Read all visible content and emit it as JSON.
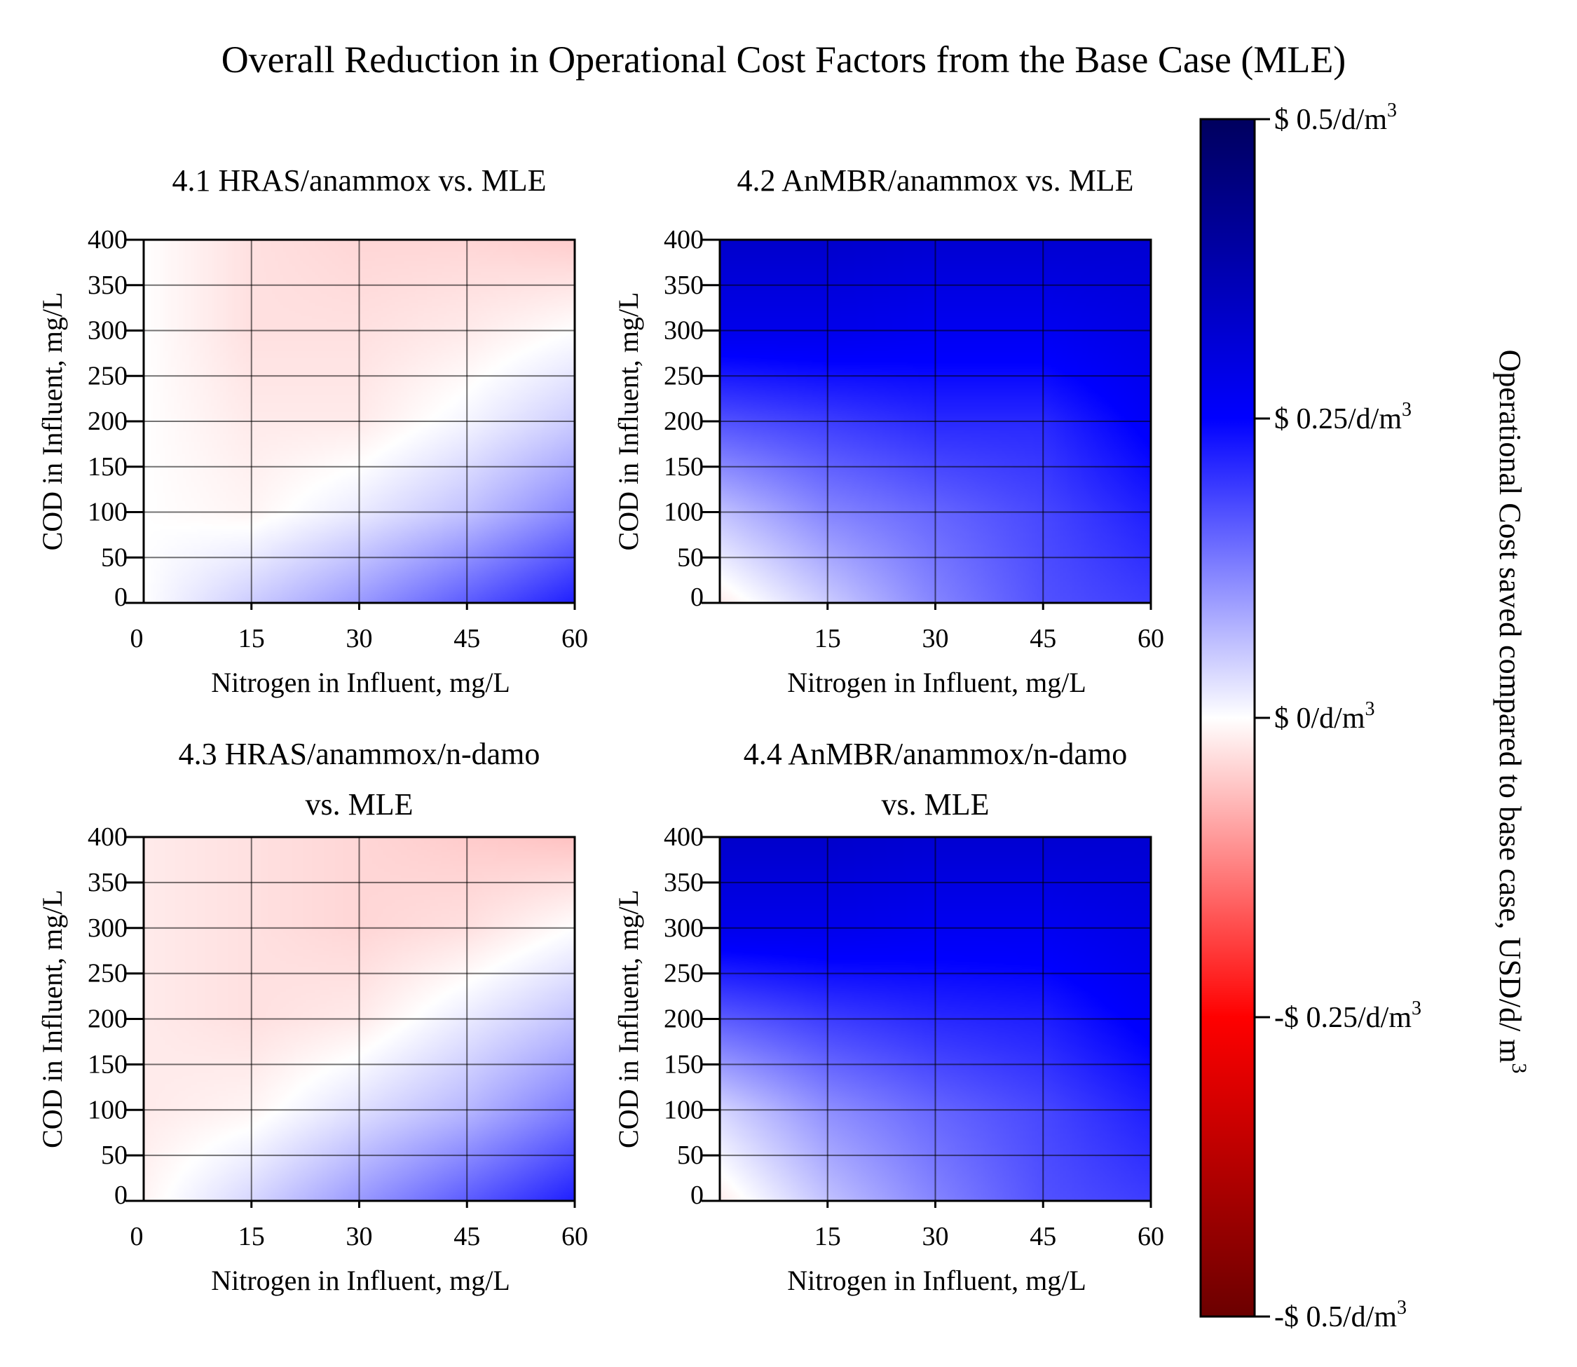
{
  "figure": {
    "title": "Overall Reduction in Operational Cost Factors from the Base Case (MLE)"
  },
  "colorbar": {
    "label": "Operational Cost saved compared to base case, USD/d/ m",
    "label_superscript": "3",
    "ticks": [
      {
        "value": 0.5,
        "text": "$ 0.5/d/m",
        "sup": "3"
      },
      {
        "value": 0.25,
        "text": "$ 0.25/d/m",
        "sup": "3"
      },
      {
        "value": 0,
        "text": "$ 0/d/m",
        "sup": "3"
      },
      {
        "value": -0.25,
        "text": "-$ 0.25/d/m",
        "sup": "3"
      },
      {
        "value": -0.5,
        "text": "-$ 0.5/d/m",
        "sup": "3"
      }
    ],
    "range": [
      -0.5,
      0.5
    ],
    "colors": {
      "min": "#6b0000",
      "low": "#ff0000",
      "zero": "#ffffff",
      "high": "#0000ff",
      "max": "#00005e"
    }
  },
  "chart_data": [
    {
      "type": "heatmap",
      "title": "4.1 HRAS/anammox vs. MLE",
      "xlabel": "Nitrogen in Influent, mg/L",
      "ylabel": "COD in Influent, mg/L",
      "xlim": [
        0,
        60
      ],
      "ylim": [
        0,
        400
      ],
      "xticks": [
        "0",
        "15",
        "30",
        "45",
        "60"
      ],
      "yticks": [
        "0",
        "50",
        "100",
        "150",
        "200",
        "250",
        "300",
        "350",
        "400"
      ],
      "x": [
        0,
        15,
        30,
        45,
        60
      ],
      "y": [
        0,
        100,
        200,
        300,
        400
      ],
      "z": [
        [
          0.0,
          0.05,
          0.1,
          0.16,
          0.22
        ],
        [
          0.0,
          -0.01,
          0.02,
          0.06,
          0.12
        ],
        [
          0.0,
          -0.02,
          -0.02,
          0.01,
          0.05
        ],
        [
          0.0,
          -0.03,
          -0.03,
          -0.02,
          0.0
        ],
        [
          0.0,
          -0.03,
          -0.04,
          -0.04,
          -0.05
        ]
      ],
      "grid": true
    },
    {
      "type": "heatmap",
      "title": "4.2 AnMBR/anammox vs. MLE",
      "xlabel": "Nitrogen in Influent, mg/L",
      "ylabel": "COD in Influent, mg/L",
      "xlim": [
        0,
        60
      ],
      "ylim": [
        0,
        400
      ],
      "xticks": [
        "15",
        "30",
        "45",
        "60"
      ],
      "yticks": [
        "0",
        "50",
        "100",
        "150",
        "200",
        "250",
        "300",
        "350",
        "400"
      ],
      "x": [
        0,
        15,
        30,
        45,
        60
      ],
      "y": [
        0,
        100,
        200,
        300,
        400
      ],
      "z": [
        [
          -0.02,
          0.05,
          0.12,
          0.17,
          0.19
        ],
        [
          0.06,
          0.12,
          0.15,
          0.18,
          0.22
        ],
        [
          0.17,
          0.19,
          0.21,
          0.21,
          0.26
        ],
        [
          0.28,
          0.28,
          0.27,
          0.27,
          0.29
        ],
        [
          0.33,
          0.33,
          0.32,
          0.32,
          0.32
        ]
      ],
      "grid": true
    },
    {
      "type": "heatmap",
      "title": "4.3 HRAS/anammox/n-damo vs. MLE",
      "xlabel": "Nitrogen in Influent, mg/L",
      "ylabel": "COD in Influent, mg/L",
      "xlim": [
        0,
        60
      ],
      "ylim": [
        0,
        400
      ],
      "xticks": [
        "0",
        "15",
        "30",
        "45",
        "60"
      ],
      "yticks": [
        "0",
        "50",
        "100",
        "150",
        "200",
        "250",
        "300",
        "350",
        "400"
      ],
      "x": [
        0,
        15,
        30,
        45,
        60
      ],
      "y": [
        0,
        100,
        200,
        300,
        400
      ],
      "z": [
        [
          -0.01,
          0.04,
          0.1,
          0.16,
          0.22
        ],
        [
          -0.02,
          -0.01,
          0.03,
          0.07,
          0.13
        ],
        [
          -0.02,
          -0.03,
          -0.02,
          0.02,
          0.06
        ],
        [
          -0.02,
          -0.03,
          -0.04,
          -0.03,
          0.0
        ],
        [
          -0.02,
          -0.03,
          -0.04,
          -0.05,
          -0.06
        ]
      ],
      "grid": true
    },
    {
      "type": "heatmap",
      "title": "4.4 AnMBR/anammox/n-damo vs. MLE",
      "xlabel": "Nitrogen in Influent, mg/L",
      "ylabel": "COD in Influent, mg/L",
      "xlim": [
        0,
        60
      ],
      "ylim": [
        0,
        400
      ],
      "xticks": [
        "15",
        "30",
        "45",
        "60"
      ],
      "yticks": [
        "0",
        "50",
        "100",
        "150",
        "200",
        "250",
        "300",
        "350",
        "400"
      ],
      "x": [
        0,
        15,
        30,
        45,
        60
      ],
      "y": [
        0,
        100,
        200,
        300,
        400
      ],
      "z": [
        [
          -0.02,
          0.06,
          0.12,
          0.17,
          0.19
        ],
        [
          0.04,
          0.11,
          0.15,
          0.18,
          0.22
        ],
        [
          0.16,
          0.19,
          0.21,
          0.22,
          0.26
        ],
        [
          0.28,
          0.28,
          0.27,
          0.27,
          0.29
        ],
        [
          0.33,
          0.33,
          0.32,
          0.32,
          0.32
        ]
      ],
      "grid": true
    }
  ]
}
